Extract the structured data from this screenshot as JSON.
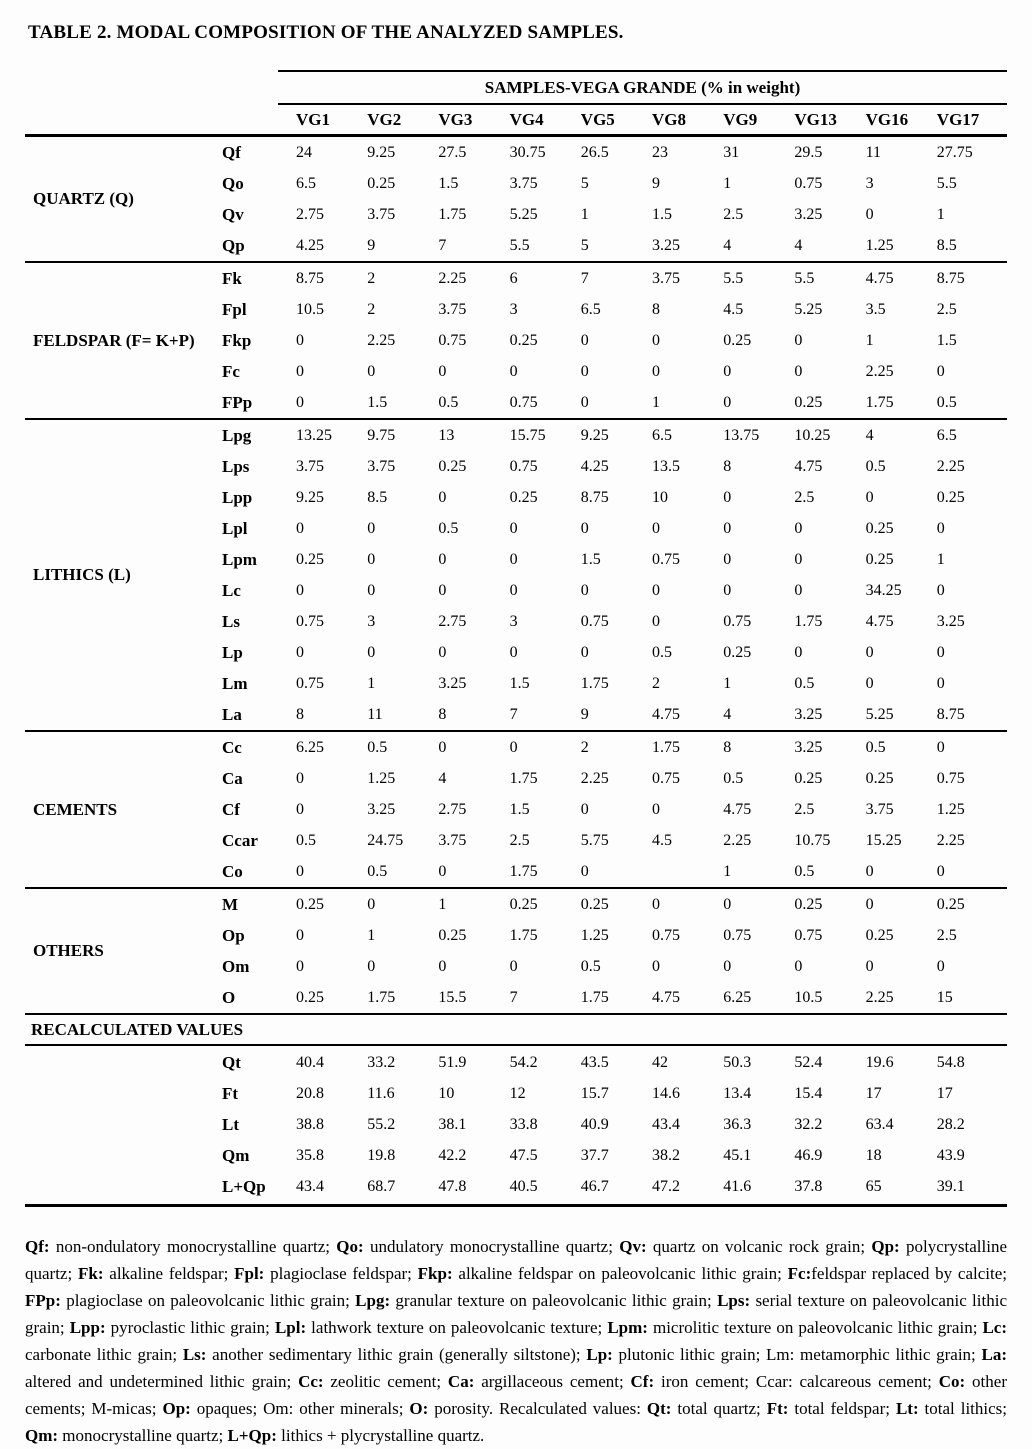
{
  "title": "TABLE 2. MODAL COMPOSITION OF THE ANALYZED SAMPLES.",
  "table": {
    "header": {
      "group_title": "SAMPLES-VEGA GRANDE (% in weight)",
      "columns": [
        "VG1",
        "VG2",
        "VG3",
        "VG4",
        "VG5",
        "VG8",
        "VG9",
        "VG13",
        "VG16",
        "VG17"
      ]
    },
    "groups": [
      {
        "name": "QUARTZ (Q)",
        "rows": [
          {
            "code": "Qf",
            "values": [
              "24",
              "9.25",
              "27.5",
              "30.75",
              "26.5",
              "23",
              "31",
              "29.5",
              "11",
              "27.75"
            ]
          },
          {
            "code": "Qo",
            "values": [
              "6.5",
              "0.25",
              "1.5",
              "3.75",
              "5",
              "9",
              "1",
              "0.75",
              "3",
              "5.5"
            ]
          },
          {
            "code": "Qv",
            "values": [
              "2.75",
              "3.75",
              "1.75",
              "5.25",
              "1",
              "1.5",
              "2.5",
              "3.25",
              "0",
              "1"
            ]
          },
          {
            "code": "Qp",
            "values": [
              "4.25",
              "9",
              "7",
              "5.5",
              "5",
              "3.25",
              "4",
              "4",
              "1.25",
              "8.5"
            ]
          }
        ]
      },
      {
        "name": "FELDSPAR (F= K+P)",
        "rows": [
          {
            "code": "Fk",
            "values": [
              "8.75",
              "2",
              "2.25",
              "6",
              "7",
              "3.75",
              "5.5",
              "5.5",
              "4.75",
              "8.75"
            ]
          },
          {
            "code": "Fpl",
            "values": [
              "10.5",
              "2",
              "3.75",
              "3",
              "6.5",
              "8",
              "4.5",
              "5.25",
              "3.5",
              "2.5"
            ]
          },
          {
            "code": "Fkp",
            "values": [
              "0",
              "2.25",
              "0.75",
              "0.25",
              "0",
              "0",
              "0.25",
              "0",
              "1",
              "1.5"
            ]
          },
          {
            "code": "Fc",
            "values": [
              "0",
              "0",
              "0",
              "0",
              "0",
              "0",
              "0",
              "0",
              "2.25",
              "0"
            ]
          },
          {
            "code": "FPp",
            "values": [
              "0",
              "1.5",
              "0.5",
              "0.75",
              "0",
              "1",
              "0",
              "0.25",
              "1.75",
              "0.5"
            ]
          }
        ]
      },
      {
        "name": "LITHICS (L)",
        "rows": [
          {
            "code": "Lpg",
            "values": [
              "13.25",
              "9.75",
              "13",
              "15.75",
              "9.25",
              "6.5",
              "13.75",
              "10.25",
              "4",
              "6.5"
            ]
          },
          {
            "code": "Lps",
            "values": [
              "3.75",
              "3.75",
              "0.25",
              "0.75",
              "4.25",
              "13.5",
              "8",
              "4.75",
              "0.5",
              "2.25"
            ]
          },
          {
            "code": "Lpp",
            "values": [
              "9.25",
              "8.5",
              "0",
              "0.25",
              "8.75",
              "10",
              "0",
              "2.5",
              "0",
              "0.25"
            ]
          },
          {
            "code": "Lpl",
            "values": [
              "0",
              "0",
              "0.5",
              "0",
              "0",
              "0",
              "0",
              "0",
              "0.25",
              "0"
            ]
          },
          {
            "code": "Lpm",
            "values": [
              "0.25",
              "0",
              "0",
              "0",
              "1.5",
              "0.75",
              "0",
              "0",
              "0.25",
              "1"
            ]
          },
          {
            "code": "Lc",
            "values": [
              "0",
              "0",
              "0",
              "0",
              "0",
              "0",
              "0",
              "0",
              "34.25",
              "0"
            ]
          },
          {
            "code": "Ls",
            "values": [
              "0.75",
              "3",
              "2.75",
              "3",
              "0.75",
              "0",
              "0.75",
              "1.75",
              "4.75",
              "3.25"
            ]
          },
          {
            "code": "Lp",
            "values": [
              "0",
              "0",
              "0",
              "0",
              "0",
              "0.5",
              "0.25",
              "0",
              "0",
              "0"
            ]
          },
          {
            "code": "Lm",
            "values": [
              "0.75",
              "1",
              "3.25",
              "1.5",
              "1.75",
              "2",
              "1",
              "0.5",
              "0",
              "0"
            ]
          },
          {
            "code": "La",
            "values": [
              "8",
              "11",
              "8",
              "7",
              "9",
              "4.75",
              "4",
              "3.25",
              "5.25",
              "8.75"
            ]
          }
        ]
      },
      {
        "name": "CEMENTS",
        "rows": [
          {
            "code": "Cc",
            "values": [
              "6.25",
              "0.5",
              "0",
              "0",
              "2",
              "1.75",
              "8",
              "3.25",
              "0.5",
              "0"
            ]
          },
          {
            "code": "Ca",
            "values": [
              "0",
              "1.25",
              "4",
              "1.75",
              "2.25",
              "0.75",
              "0.5",
              "0.25",
              "0.25",
              "0.75"
            ]
          },
          {
            "code": "Cf",
            "values": [
              "0",
              "3.25",
              "2.75",
              "1.5",
              "0",
              "0",
              "4.75",
              "2.5",
              "3.75",
              "1.25"
            ]
          },
          {
            "code": "Ccar",
            "values": [
              "0.5",
              "24.75",
              "3.75",
              "2.5",
              "5.75",
              "4.5",
              "2.25",
              "10.75",
              "15.25",
              "2.25"
            ]
          },
          {
            "code": "Co",
            "values": [
              "0",
              "0.5",
              "0",
              "1.75",
              "0",
              "",
              "1",
              "0.5",
              "0",
              "0"
            ]
          }
        ]
      },
      {
        "name": "OTHERS",
        "rows": [
          {
            "code": "M",
            "values": [
              "0.25",
              "0",
              "1",
              "0.25",
              "0.25",
              "0",
              "0",
              "0.25",
              "0",
              "0.25"
            ]
          },
          {
            "code": "Op",
            "values": [
              "0",
              "1",
              "0.25",
              "1.75",
              "1.25",
              "0.75",
              "0.75",
              "0.75",
              "0.25",
              "2.5"
            ]
          },
          {
            "code": "Om",
            "values": [
              "0",
              "0",
              "0",
              "0",
              "0.5",
              "0",
              "0",
              "0",
              "0",
              "0"
            ]
          },
          {
            "code": "O",
            "values": [
              "0.25",
              "1.75",
              "15.5",
              "7",
              "1.75",
              "4.75",
              "6.25",
              "10.5",
              "2.25",
              "15"
            ]
          }
        ]
      }
    ],
    "recalculated": {
      "label": "RECALCULATED VALUES",
      "rows": [
        {
          "code": "Qt",
          "values": [
            "40.4",
            "33.2",
            "51.9",
            "54.2",
            "43.5",
            "42",
            "50.3",
            "52.4",
            "19.6",
            "54.8"
          ]
        },
        {
          "code": "Ft",
          "values": [
            "20.8",
            "11.6",
            "10",
            "12",
            "15.7",
            "14.6",
            "13.4",
            "15.4",
            "17",
            "17"
          ]
        },
        {
          "code": "Lt",
          "values": [
            "38.8",
            "55.2",
            "38.1",
            "33.8",
            "40.9",
            "43.4",
            "36.3",
            "32.2",
            "63.4",
            "28.2"
          ]
        },
        {
          "code": "Qm",
          "values": [
            "35.8",
            "19.8",
            "42.2",
            "47.5",
            "37.7",
            "38.2",
            "45.1",
            "46.9",
            "18",
            "43.9"
          ]
        },
        {
          "code": "L+Qp",
          "values": [
            "43.4",
            "68.7",
            "47.8",
            "40.5",
            "46.7",
            "47.2",
            "41.6",
            "37.8",
            "65",
            "39.1"
          ]
        }
      ]
    }
  },
  "footnote": {
    "segments": [
      {
        "bold": "Qf:",
        "text": " non-ondulatory monocrystalline quartz; "
      },
      {
        "bold": "Qo:",
        "text": " undulatory monocrystalline quartz; "
      },
      {
        "bold": "Qv:",
        "text": " quartz on volcanic rock grain; "
      },
      {
        "bold": "Qp:",
        "text": " polycrystalline quartz; "
      },
      {
        "bold": "Fk:",
        "text": " alkaline feldspar; "
      },
      {
        "bold": "Fpl:",
        "text": " plagioclase feldspar; "
      },
      {
        "bold": "Fkp:",
        "text": " alkaline feldspar on paleovolcanic lithic grain; "
      },
      {
        "bold": "Fc:",
        "text": "feldspar replaced by calcite; "
      },
      {
        "bold": "FPp:",
        "text": " plagioclase on paleovolcanic lithic grain; "
      },
      {
        "bold": "Lpg:",
        "text": " granular texture on paleovolcanic lithic grain; "
      },
      {
        "bold": "Lps:",
        "text": " serial texture on paleovolcanic lithic grain; "
      },
      {
        "bold": "Lpp:",
        "text": " pyroclastic lithic grain; "
      },
      {
        "bold": "Lpl:",
        "text": " lathwork texture on paleovolcanic texture; "
      },
      {
        "bold": "Lpm:",
        "text": " microlitic texture on paleovolcanic lithic grain; "
      },
      {
        "bold": "Lc:",
        "text": " carbonate lithic grain; "
      },
      {
        "bold": "Ls:",
        "text": " another sedimentary lithic grain (generally siltstone); "
      },
      {
        "bold": "Lp:",
        "text": " plutonic lithic grain; Lm: metamorphic lithic grain; "
      },
      {
        "bold": "La:",
        "text": " altered and undetermined lithic grain; "
      },
      {
        "bold": "Cc:",
        "text": " zeolitic cement; "
      },
      {
        "bold": "Ca:",
        "text": " argillaceous cement; "
      },
      {
        "bold": "Cf:",
        "text": " iron cement; Ccar: calcareous cement; "
      },
      {
        "bold": "Co:",
        "text": " other cements; M-micas; "
      },
      {
        "bold": "Op:",
        "text": " opaques; Om: other minerals; "
      },
      {
        "bold": "O:",
        "text": " porosity. Recalculated values: "
      },
      {
        "bold": "Qt:",
        "text": " total quartz; "
      },
      {
        "bold": "Ft:",
        "text": " total feldspar; "
      },
      {
        "bold": "Lt:",
        "text": " total lithics; "
      },
      {
        "bold": "Qm:",
        "text": " monocrystalline quartz; "
      },
      {
        "bold": "L+Qp:",
        "text": " lithics + plycrystalline quartz."
      }
    ]
  }
}
